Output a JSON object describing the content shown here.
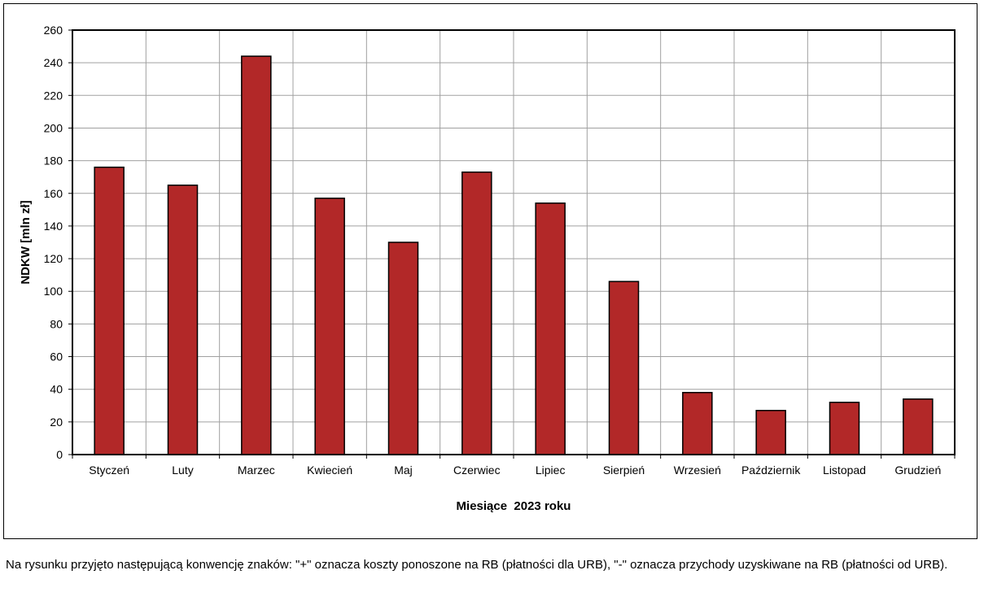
{
  "chart_data": {
    "type": "bar",
    "categories": [
      "Styczeń",
      "Luty",
      "Marzec",
      "Kwiecień",
      "Maj",
      "Czerwiec",
      "Lipiec",
      "Sierpień",
      "Wrzesień",
      "Październik",
      "Listopad",
      "Grudzień"
    ],
    "values": [
      176,
      165,
      244,
      157,
      130,
      173,
      154,
      106,
      38,
      27,
      32,
      34
    ],
    "title": "",
    "xlabel": "Miesiące  2023 roku",
    "ylabel": "NDKW [mln zł]",
    "ylim": [
      0,
      260
    ],
    "yticks": [
      0,
      20,
      40,
      60,
      80,
      100,
      120,
      140,
      160,
      180,
      200,
      220,
      240,
      260
    ],
    "ytick_labels": [
      "0",
      "20",
      "40",
      "60",
      "80",
      "100",
      "120",
      "140",
      "160",
      "180",
      "200",
      "220",
      "240",
      "260"
    ],
    "grid": true,
    "legend": "none",
    "colors": {
      "bar_fill": "#B22828",
      "bar_stroke": "#000000",
      "grid": "#A0A0A0",
      "axis": "#000000"
    }
  },
  "footnote": "Na rysunku przyjęto następującą konwencję znaków: \"+\" oznacza koszty ponoszone na RB (płatności dla URB), \"-\" oznacza przychody uzyskiwane na RB (płatności od URB)."
}
